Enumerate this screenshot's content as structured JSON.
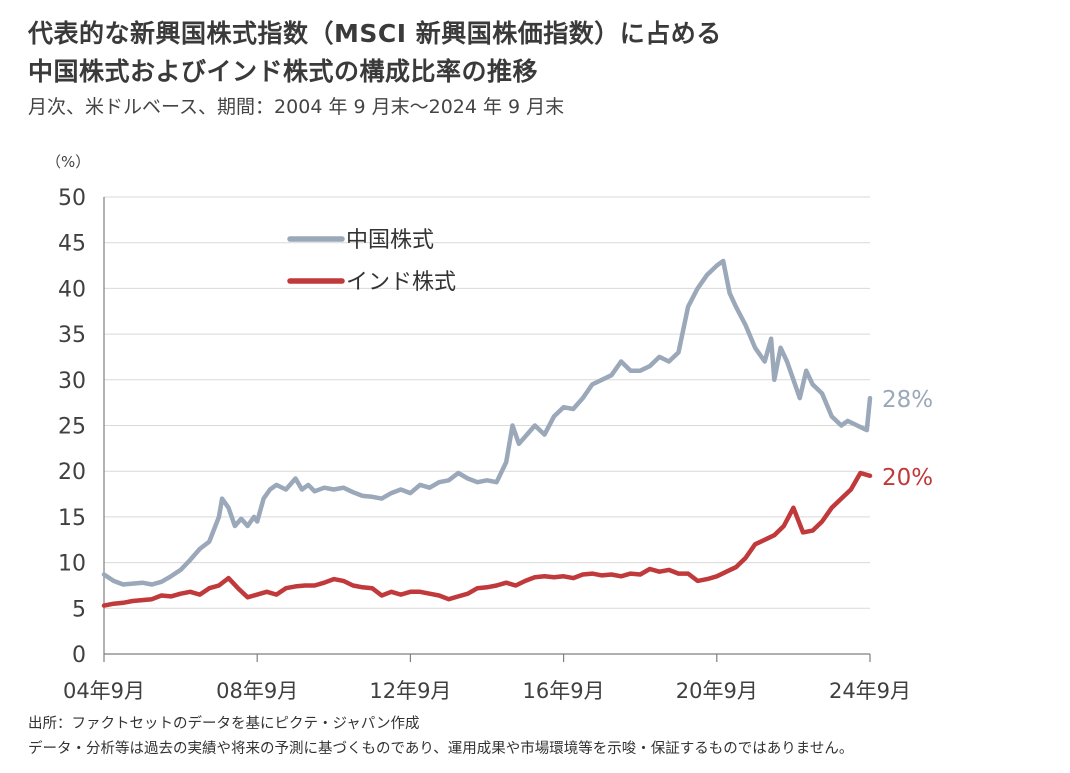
{
  "title_line1": "代表的な新興国株式指数（MSCI 新興国株価指数）に占める",
  "title_line2": "中国株式およびインド株式の構成比率の推移",
  "subtitle": "月次、米ドルベース、期間：2004 年 9 月末～2024 年 9 月末",
  "source_note": "出所：ファクトセットのデータを基にピクテ・ジャパン作成",
  "disclaimer": "データ・分析等は過去の実績や将来の予測に基づくものであり、運用成果や市場環境等を示唆・保証するものではありません。",
  "colors": {
    "china": "#9aa8b9",
    "india": "#c0393b",
    "grid": "#d9d9d9",
    "axis": "#7f7f7f"
  },
  "chart_data": {
    "type": "line",
    "y_unit_label": "（%）",
    "ylim": [
      0,
      50
    ],
    "y_ticks": [
      0,
      5,
      10,
      15,
      20,
      25,
      30,
      35,
      40,
      45,
      50
    ],
    "xlim": [
      "2004-09",
      "2024-09"
    ],
    "x_ticks": [
      {
        "date": "2004-09",
        "label": "04年9月"
      },
      {
        "date": "2008-09",
        "label": "08年9月"
      },
      {
        "date": "2012-09",
        "label": "12年9月"
      },
      {
        "date": "2016-09",
        "label": "16年9月"
      },
      {
        "date": "2020-09",
        "label": "20年9月"
      },
      {
        "date": "2024-09",
        "label": "24年9月"
      }
    ],
    "grid": true,
    "legend_position": "top-left",
    "series": [
      {
        "name": "中国株式",
        "color": "#9aa8b9",
        "end_label": "28%",
        "points": [
          [
            "2004-09",
            8.7
          ],
          [
            "2004-12",
            8.0
          ],
          [
            "2005-03",
            7.6
          ],
          [
            "2005-06",
            7.7
          ],
          [
            "2005-09",
            7.8
          ],
          [
            "2005-12",
            7.6
          ],
          [
            "2006-03",
            7.9
          ],
          [
            "2006-06",
            8.5
          ],
          [
            "2006-09",
            9.2
          ],
          [
            "2006-12",
            10.3
          ],
          [
            "2007-03",
            11.5
          ],
          [
            "2007-06",
            12.3
          ],
          [
            "2007-09",
            15.0
          ],
          [
            "2007-10",
            17.0
          ],
          [
            "2007-12",
            16.0
          ],
          [
            "2008-01",
            15.0
          ],
          [
            "2008-02",
            14.0
          ],
          [
            "2008-04",
            14.8
          ],
          [
            "2008-06",
            14.0
          ],
          [
            "2008-08",
            15.0
          ],
          [
            "2008-09",
            14.5
          ],
          [
            "2008-11",
            17.0
          ],
          [
            "2009-01",
            18.0
          ],
          [
            "2009-03",
            18.5
          ],
          [
            "2009-06",
            18.0
          ],
          [
            "2009-09",
            19.2
          ],
          [
            "2009-11",
            18.0
          ],
          [
            "2010-01",
            18.5
          ],
          [
            "2010-03",
            17.8
          ],
          [
            "2010-06",
            18.2
          ],
          [
            "2010-09",
            18.0
          ],
          [
            "2010-12",
            18.2
          ],
          [
            "2011-03",
            17.7
          ],
          [
            "2011-06",
            17.3
          ],
          [
            "2011-09",
            17.2
          ],
          [
            "2011-12",
            17.0
          ],
          [
            "2012-03",
            17.6
          ],
          [
            "2012-06",
            18.0
          ],
          [
            "2012-09",
            17.6
          ],
          [
            "2012-12",
            18.5
          ],
          [
            "2013-03",
            18.2
          ],
          [
            "2013-06",
            18.8
          ],
          [
            "2013-09",
            19.0
          ],
          [
            "2013-12",
            19.8
          ],
          [
            "2014-03",
            19.2
          ],
          [
            "2014-06",
            18.8
          ],
          [
            "2014-09",
            19.0
          ],
          [
            "2014-12",
            18.8
          ],
          [
            "2015-03",
            21.0
          ],
          [
            "2015-05",
            25.0
          ],
          [
            "2015-07",
            23.0
          ],
          [
            "2015-09",
            23.8
          ],
          [
            "2015-12",
            25.0
          ],
          [
            "2016-03",
            24.0
          ],
          [
            "2016-06",
            26.0
          ],
          [
            "2016-09",
            27.0
          ],
          [
            "2016-12",
            26.8
          ],
          [
            "2017-03",
            28.0
          ],
          [
            "2017-06",
            29.5
          ],
          [
            "2017-09",
            30.0
          ],
          [
            "2017-12",
            30.5
          ],
          [
            "2018-03",
            32.0
          ],
          [
            "2018-06",
            31.0
          ],
          [
            "2018-09",
            31.0
          ],
          [
            "2018-12",
            31.5
          ],
          [
            "2019-03",
            32.5
          ],
          [
            "2019-06",
            32.0
          ],
          [
            "2019-09",
            33.0
          ],
          [
            "2019-12",
            38.0
          ],
          [
            "2020-03",
            40.0
          ],
          [
            "2020-06",
            41.5
          ],
          [
            "2020-09",
            42.5
          ],
          [
            "2020-11",
            43.0
          ],
          [
            "2021-01",
            39.5
          ],
          [
            "2021-03",
            38.0
          ],
          [
            "2021-06",
            36.0
          ],
          [
            "2021-09",
            33.5
          ],
          [
            "2021-12",
            32.0
          ],
          [
            "2022-02",
            34.5
          ],
          [
            "2022-03",
            30.0
          ],
          [
            "2022-05",
            33.5
          ],
          [
            "2022-07",
            32.0
          ],
          [
            "2022-09",
            30.0
          ],
          [
            "2022-11",
            28.0
          ],
          [
            "2023-01",
            31.0
          ],
          [
            "2023-03",
            29.5
          ],
          [
            "2023-06",
            28.5
          ],
          [
            "2023-09",
            26.0
          ],
          [
            "2023-12",
            25.0
          ],
          [
            "2024-02",
            25.5
          ],
          [
            "2024-05",
            25.0
          ],
          [
            "2024-08",
            24.5
          ],
          [
            "2024-09",
            28.0
          ]
        ]
      },
      {
        "name": "インド株式",
        "color": "#c0393b",
        "end_label": "20%",
        "points": [
          [
            "2004-09",
            5.3
          ],
          [
            "2004-12",
            5.5
          ],
          [
            "2005-03",
            5.6
          ],
          [
            "2005-06",
            5.8
          ],
          [
            "2005-09",
            5.9
          ],
          [
            "2005-12",
            6.0
          ],
          [
            "2006-03",
            6.4
          ],
          [
            "2006-06",
            6.3
          ],
          [
            "2006-09",
            6.6
          ],
          [
            "2006-12",
            6.8
          ],
          [
            "2007-03",
            6.5
          ],
          [
            "2007-06",
            7.2
          ],
          [
            "2007-09",
            7.5
          ],
          [
            "2007-12",
            8.3
          ],
          [
            "2008-03",
            7.2
          ],
          [
            "2008-06",
            6.2
          ],
          [
            "2008-09",
            6.5
          ],
          [
            "2008-12",
            6.8
          ],
          [
            "2009-03",
            6.5
          ],
          [
            "2009-06",
            7.2
          ],
          [
            "2009-09",
            7.4
          ],
          [
            "2009-12",
            7.5
          ],
          [
            "2010-03",
            7.5
          ],
          [
            "2010-06",
            7.8
          ],
          [
            "2010-09",
            8.2
          ],
          [
            "2010-12",
            8.0
          ],
          [
            "2011-03",
            7.5
          ],
          [
            "2011-06",
            7.3
          ],
          [
            "2011-09",
            7.2
          ],
          [
            "2011-12",
            6.4
          ],
          [
            "2012-03",
            6.8
          ],
          [
            "2012-06",
            6.5
          ],
          [
            "2012-09",
            6.8
          ],
          [
            "2012-12",
            6.8
          ],
          [
            "2013-03",
            6.6
          ],
          [
            "2013-06",
            6.4
          ],
          [
            "2013-09",
            6.0
          ],
          [
            "2013-12",
            6.3
          ],
          [
            "2014-03",
            6.6
          ],
          [
            "2014-06",
            7.2
          ],
          [
            "2014-09",
            7.3
          ],
          [
            "2014-12",
            7.5
          ],
          [
            "2015-03",
            7.8
          ],
          [
            "2015-06",
            7.5
          ],
          [
            "2015-09",
            8.0
          ],
          [
            "2015-12",
            8.4
          ],
          [
            "2016-03",
            8.5
          ],
          [
            "2016-06",
            8.4
          ],
          [
            "2016-09",
            8.5
          ],
          [
            "2016-12",
            8.3
          ],
          [
            "2017-03",
            8.7
          ],
          [
            "2017-06",
            8.8
          ],
          [
            "2017-09",
            8.6
          ],
          [
            "2017-12",
            8.7
          ],
          [
            "2018-03",
            8.5
          ],
          [
            "2018-06",
            8.8
          ],
          [
            "2018-09",
            8.7
          ],
          [
            "2018-12",
            9.3
          ],
          [
            "2019-03",
            9.0
          ],
          [
            "2019-06",
            9.2
          ],
          [
            "2019-09",
            8.8
          ],
          [
            "2019-12",
            8.8
          ],
          [
            "2020-03",
            8.0
          ],
          [
            "2020-06",
            8.2
          ],
          [
            "2020-09",
            8.5
          ],
          [
            "2020-12",
            9.0
          ],
          [
            "2021-03",
            9.5
          ],
          [
            "2021-06",
            10.5
          ],
          [
            "2021-09",
            12.0
          ],
          [
            "2021-12",
            12.5
          ],
          [
            "2022-03",
            13.0
          ],
          [
            "2022-06",
            14.0
          ],
          [
            "2022-09",
            16.0
          ],
          [
            "2022-12",
            13.3
          ],
          [
            "2023-03",
            13.5
          ],
          [
            "2023-06",
            14.5
          ],
          [
            "2023-09",
            16.0
          ],
          [
            "2023-12",
            17.0
          ],
          [
            "2024-03",
            18.0
          ],
          [
            "2024-06",
            19.8
          ],
          [
            "2024-09",
            19.5
          ]
        ]
      }
    ]
  }
}
